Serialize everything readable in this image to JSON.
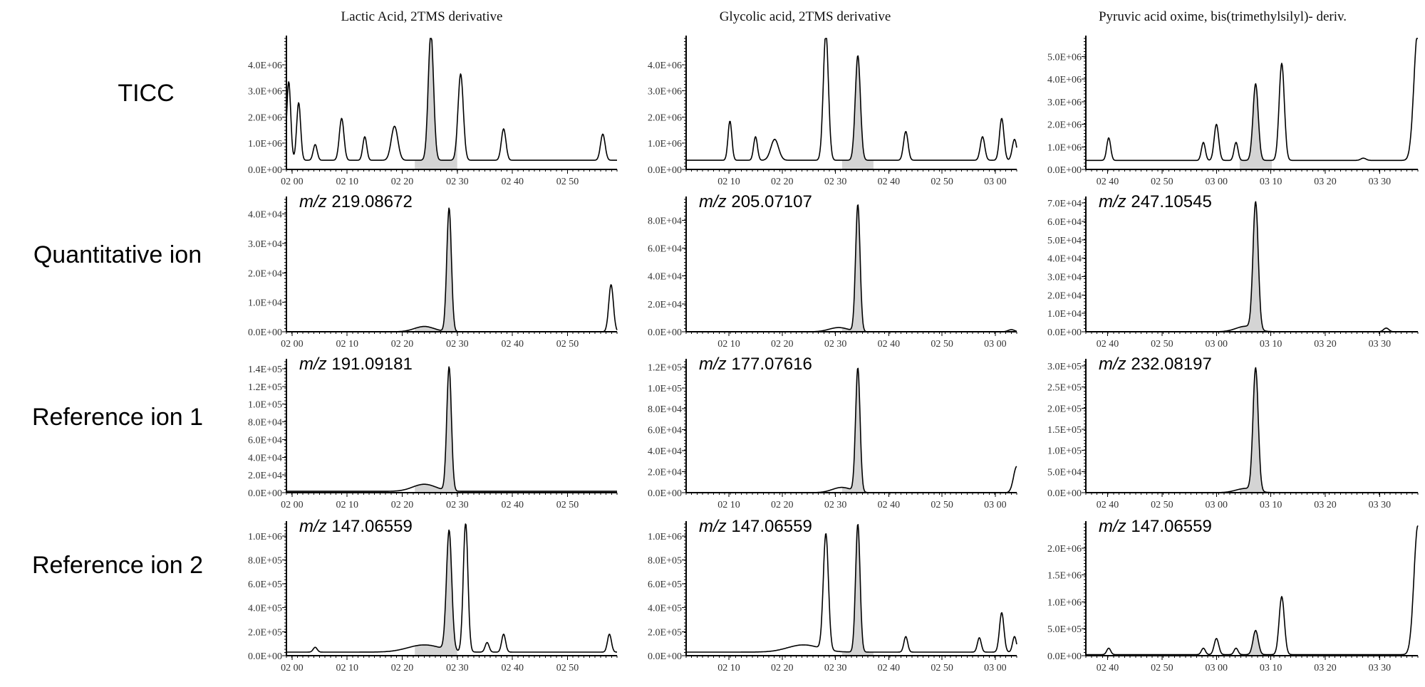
{
  "chart_data": {
    "type": "line",
    "columns": [
      {
        "title": "Lactic Acid, 2TMS derivative",
        "fill": [
          2.37,
          2.5
        ]
      },
      {
        "title": "Glycolic acid, 2TMS derivative",
        "fill": [
          2.52,
          2.62
        ]
      },
      {
        "title": "Pyruvic acid oxime, bis(trimethylsilyl)- deriv.",
        "fill": [
          3.07,
          3.17
        ]
      }
    ],
    "rows": [
      {
        "label": "TICC"
      },
      {
        "label": "Quantitative ion"
      },
      {
        "label": "Reference ion 1"
      },
      {
        "label": "Reference ion 2"
      }
    ],
    "panels": [
      {
        "row": 0,
        "col": 0,
        "mz": "",
        "xlim": [
          1.983,
          2.983
        ],
        "ylim": [
          0,
          5000000
        ],
        "xticks": [
          "02 00",
          "02 10",
          "02 20",
          "02 30",
          "02 40",
          "02 50"
        ],
        "yticks": [
          "0.0E+00",
          "1.0E+06",
          "2.0E+06",
          "3.0E+06",
          "4.0E+06"
        ],
        "ytick_values": [
          0,
          1000000,
          2000000,
          3000000,
          4000000
        ],
        "peaks": [
          [
            1.99,
            3000000,
            0.006
          ],
          [
            2.02,
            2200000,
            0.006
          ],
          [
            2.07,
            600000,
            0.006
          ],
          [
            2.15,
            1600000,
            0.007
          ],
          [
            2.22,
            900000,
            0.006
          ],
          [
            2.31,
            1300000,
            0.01
          ],
          [
            2.42,
            4900000,
            0.008
          ],
          [
            2.51,
            3300000,
            0.008
          ],
          [
            2.64,
            1200000,
            0.007
          ],
          [
            2.94,
            1000000,
            0.007
          ]
        ],
        "baseline": 350000
      },
      {
        "row": 0,
        "col": 1,
        "mz": "",
        "xlim": [
          2.033,
          3.067
        ],
        "ylim": [
          0,
          5000000
        ],
        "xticks": [
          "02 10",
          "02 20",
          "02 30",
          "02 40",
          "02 50",
          "03 00"
        ],
        "yticks": [
          "0.0E+00",
          "1.0E+06",
          "2.0E+06",
          "3.0E+06",
          "4.0E+06"
        ],
        "ytick_values": [
          0,
          1000000,
          2000000,
          3000000,
          4000000
        ],
        "peaks": [
          [
            2.17,
            1500000,
            0.006
          ],
          [
            2.25,
            900000,
            0.006
          ],
          [
            2.31,
            800000,
            0.012
          ],
          [
            2.47,
            4900000,
            0.008
          ],
          [
            2.57,
            4000000,
            0.008
          ],
          [
            2.72,
            1100000,
            0.007
          ],
          [
            2.96,
            900000,
            0.007
          ],
          [
            3.02,
            1600000,
            0.007
          ],
          [
            3.06,
            800000,
            0.007
          ]
        ],
        "baseline": 350000
      },
      {
        "row": 0,
        "col": 2,
        "mz": "",
        "xlim": [
          2.6,
          3.617
        ],
        "ylim": [
          0,
          5800000
        ],
        "xticks": [
          "02 40",
          "02 50",
          "03 00",
          "03 10",
          "03 20",
          "03 30"
        ],
        "yticks": [
          "0.0E+00",
          "1.0E+06",
          "2.0E+06",
          "3.0E+06",
          "4.0E+06",
          "5.0E+06"
        ],
        "ytick_values": [
          0,
          1000000,
          2000000,
          3000000,
          4000000,
          5000000
        ],
        "peaks": [
          [
            2.67,
            1000000,
            0.006
          ],
          [
            2.96,
            800000,
            0.006
          ],
          [
            3.0,
            1600000,
            0.007
          ],
          [
            3.06,
            800000,
            0.006
          ],
          [
            3.12,
            3400000,
            0.008
          ],
          [
            3.2,
            4300000,
            0.008
          ],
          [
            3.45,
            100000,
            0.008
          ],
          [
            3.617,
            5800000,
            0.012
          ]
        ],
        "baseline": 400000
      },
      {
        "row": 1,
        "col": 0,
        "mz": "219.08672",
        "xlim": [
          1.983,
          2.983
        ],
        "ylim": [
          0,
          45000
        ],
        "xticks": [
          "02 00",
          "02 10",
          "02 20",
          "02 30",
          "02 40",
          "02 50"
        ],
        "yticks": [
          "0.0E+00",
          "1.0E+04",
          "2.0E+04",
          "3.0E+04",
          "4.0E+04"
        ],
        "ytick_values": [
          0,
          10000,
          20000,
          30000,
          40000
        ],
        "peaks": [
          [
            2.4,
            1800,
            0.03
          ],
          [
            2.475,
            42000,
            0.007
          ],
          [
            2.965,
            16000,
            0.007
          ]
        ],
        "baseline": 0
      },
      {
        "row": 1,
        "col": 1,
        "mz": "205.07107",
        "xlim": [
          2.033,
          3.067
        ],
        "ylim": [
          0,
          95000
        ],
        "xticks": [
          "02 10",
          "02 20",
          "02 30",
          "02 40",
          "02 50",
          "03 00"
        ],
        "yticks": [
          "0.0E+00",
          "2.0E+04",
          "4.0E+04",
          "6.0E+04",
          "8.0E+04"
        ],
        "ytick_values": [
          0,
          20000,
          40000,
          60000,
          80000
        ],
        "peaks": [
          [
            2.51,
            3000,
            0.03
          ],
          [
            2.57,
            91000,
            0.007
          ],
          [
            3.05,
            1500,
            0.01
          ]
        ],
        "baseline": 0
      },
      {
        "row": 1,
        "col": 2,
        "mz": "247.10545",
        "xlim": [
          2.6,
          3.617
        ],
        "ylim": [
          0,
          72000
        ],
        "xticks": [
          "02 40",
          "02 50",
          "03 00",
          "03 10",
          "03 20",
          "03 30"
        ],
        "yticks": [
          "0.0E+00",
          "1.0E+04",
          "2.0E+04",
          "3.0E+04",
          "4.0E+04",
          "5.0E+04",
          "6.0E+04",
          "7.0E+04"
        ],
        "ytick_values": [
          0,
          10000,
          20000,
          30000,
          40000,
          50000,
          60000,
          70000
        ],
        "peaks": [
          [
            3.09,
            3000,
            0.03
          ],
          [
            3.12,
            69000,
            0.008
          ],
          [
            3.52,
            2000,
            0.008
          ]
        ],
        "baseline": 0
      },
      {
        "row": 2,
        "col": 0,
        "mz": "191.09181",
        "xlim": [
          1.983,
          2.983
        ],
        "ylim": [
          0,
          148000
        ],
        "xticks": [
          "02 00",
          "02 10",
          "02 20",
          "02 30",
          "02 40",
          "02 50"
        ],
        "yticks": [
          "0.0E+00",
          "2.0E+04",
          "4.0E+04",
          "6.0E+04",
          "8.0E+04",
          "1.0E+05",
          "1.2E+05",
          "1.4E+05"
        ],
        "ytick_values": [
          0,
          20000,
          40000,
          60000,
          80000,
          100000,
          120000,
          140000
        ],
        "peaks": [
          [
            2.4,
            8000,
            0.035
          ],
          [
            2.475,
            140000,
            0.007
          ]
        ],
        "baseline": 1500
      },
      {
        "row": 2,
        "col": 1,
        "mz": "177.07616",
        "xlim": [
          2.033,
          3.067
        ],
        "ylim": [
          0,
          125000
        ],
        "xticks": [
          "02 10",
          "02 20",
          "02 30",
          "02 40",
          "02 50",
          "03 00"
        ],
        "yticks": [
          "0.0E+00",
          "2.0E+04",
          "4.0E+04",
          "6.0E+04",
          "8.0E+04",
          "1.0E+05",
          "1.2E+05"
        ],
        "ytick_values": [
          0,
          20000,
          40000,
          60000,
          80000,
          100000,
          120000
        ],
        "peaks": [
          [
            2.52,
            5000,
            0.03
          ],
          [
            2.57,
            118000,
            0.007
          ],
          [
            3.067,
            25000,
            0.01
          ]
        ],
        "baseline": 0
      },
      {
        "row": 2,
        "col": 2,
        "mz": "232.08197",
        "xlim": [
          2.6,
          3.617
        ],
        "ylim": [
          0,
          310000
        ],
        "xticks": [
          "02 40",
          "02 50",
          "03 00",
          "03 10",
          "03 20",
          "03 30"
        ],
        "yticks": [
          "0.0E+00",
          "5.0E+04",
          "1.0E+05",
          "1.5E+05",
          "2.0E+05",
          "2.5E+05",
          "3.0E+05"
        ],
        "ytick_values": [
          0,
          50000,
          100000,
          150000,
          200000,
          250000,
          300000
        ],
        "peaks": [
          [
            3.09,
            10000,
            0.03
          ],
          [
            3.12,
            290000,
            0.008
          ]
        ],
        "baseline": 0
      },
      {
        "row": 3,
        "col": 0,
        "mz": "147.06559",
        "xlim": [
          1.983,
          2.983
        ],
        "ylim": [
          0,
          1100000
        ],
        "xticks": [
          "02 00",
          "02 10",
          "02 20",
          "02 30",
          "02 40",
          "02 50"
        ],
        "yticks": [
          "0.0E+00",
          "2.0E+05",
          "4.0E+05",
          "6.0E+05",
          "8.0E+05",
          "1.0E+06"
        ],
        "ytick_values": [
          0,
          200000,
          400000,
          600000,
          800000,
          1000000
        ],
        "peaks": [
          [
            2.07,
            40000,
            0.006
          ],
          [
            2.4,
            60000,
            0.05
          ],
          [
            2.475,
            1000000,
            0.008
          ],
          [
            2.525,
            1080000,
            0.007
          ],
          [
            2.59,
            80000,
            0.006
          ],
          [
            2.64,
            150000,
            0.006
          ],
          [
            2.96,
            150000,
            0.006
          ]
        ],
        "baseline": 30000
      },
      {
        "row": 3,
        "col": 1,
        "mz": "147.06559",
        "xlim": [
          2.033,
          3.067
        ],
        "ylim": [
          0,
          1100000
        ],
        "xticks": [
          "02 10",
          "02 20",
          "02 30",
          "02 40",
          "02 50",
          "03 00"
        ],
        "yticks": [
          "0.0E+00",
          "2.0E+05",
          "4.0E+05",
          "6.0E+05",
          "8.0E+05",
          "1.0E+06"
        ],
        "ytick_values": [
          0,
          200000,
          400000,
          600000,
          800000,
          1000000
        ],
        "peaks": [
          [
            2.4,
            60000,
            0.05
          ],
          [
            2.47,
            970000,
            0.008
          ],
          [
            2.57,
            1070000,
            0.007
          ],
          [
            2.72,
            130000,
            0.006
          ],
          [
            2.95,
            120000,
            0.006
          ],
          [
            3.02,
            330000,
            0.007
          ],
          [
            3.06,
            130000,
            0.006
          ]
        ],
        "baseline": 30000
      },
      {
        "row": 3,
        "col": 2,
        "mz": "147.06559",
        "xlim": [
          2.6,
          3.617
        ],
        "ylim": [
          0,
          2450000
        ],
        "xticks": [
          "02 40",
          "02 50",
          "03 00",
          "03 10",
          "03 20",
          "03 30"
        ],
        "yticks": [
          "0.0E+00",
          "5.0E+05",
          "1.0E+06",
          "1.5E+06",
          "2.0E+06"
        ],
        "ytick_values": [
          0,
          500000,
          1000000,
          1500000,
          2000000
        ],
        "peaks": [
          [
            2.67,
            120000,
            0.006
          ],
          [
            2.96,
            120000,
            0.006
          ],
          [
            3.0,
            300000,
            0.007
          ],
          [
            3.06,
            120000,
            0.006
          ],
          [
            3.12,
            450000,
            0.008
          ],
          [
            3.2,
            1080000,
            0.008
          ],
          [
            3.617,
            2400000,
            0.012
          ]
        ],
        "baseline": 20000
      }
    ]
  }
}
